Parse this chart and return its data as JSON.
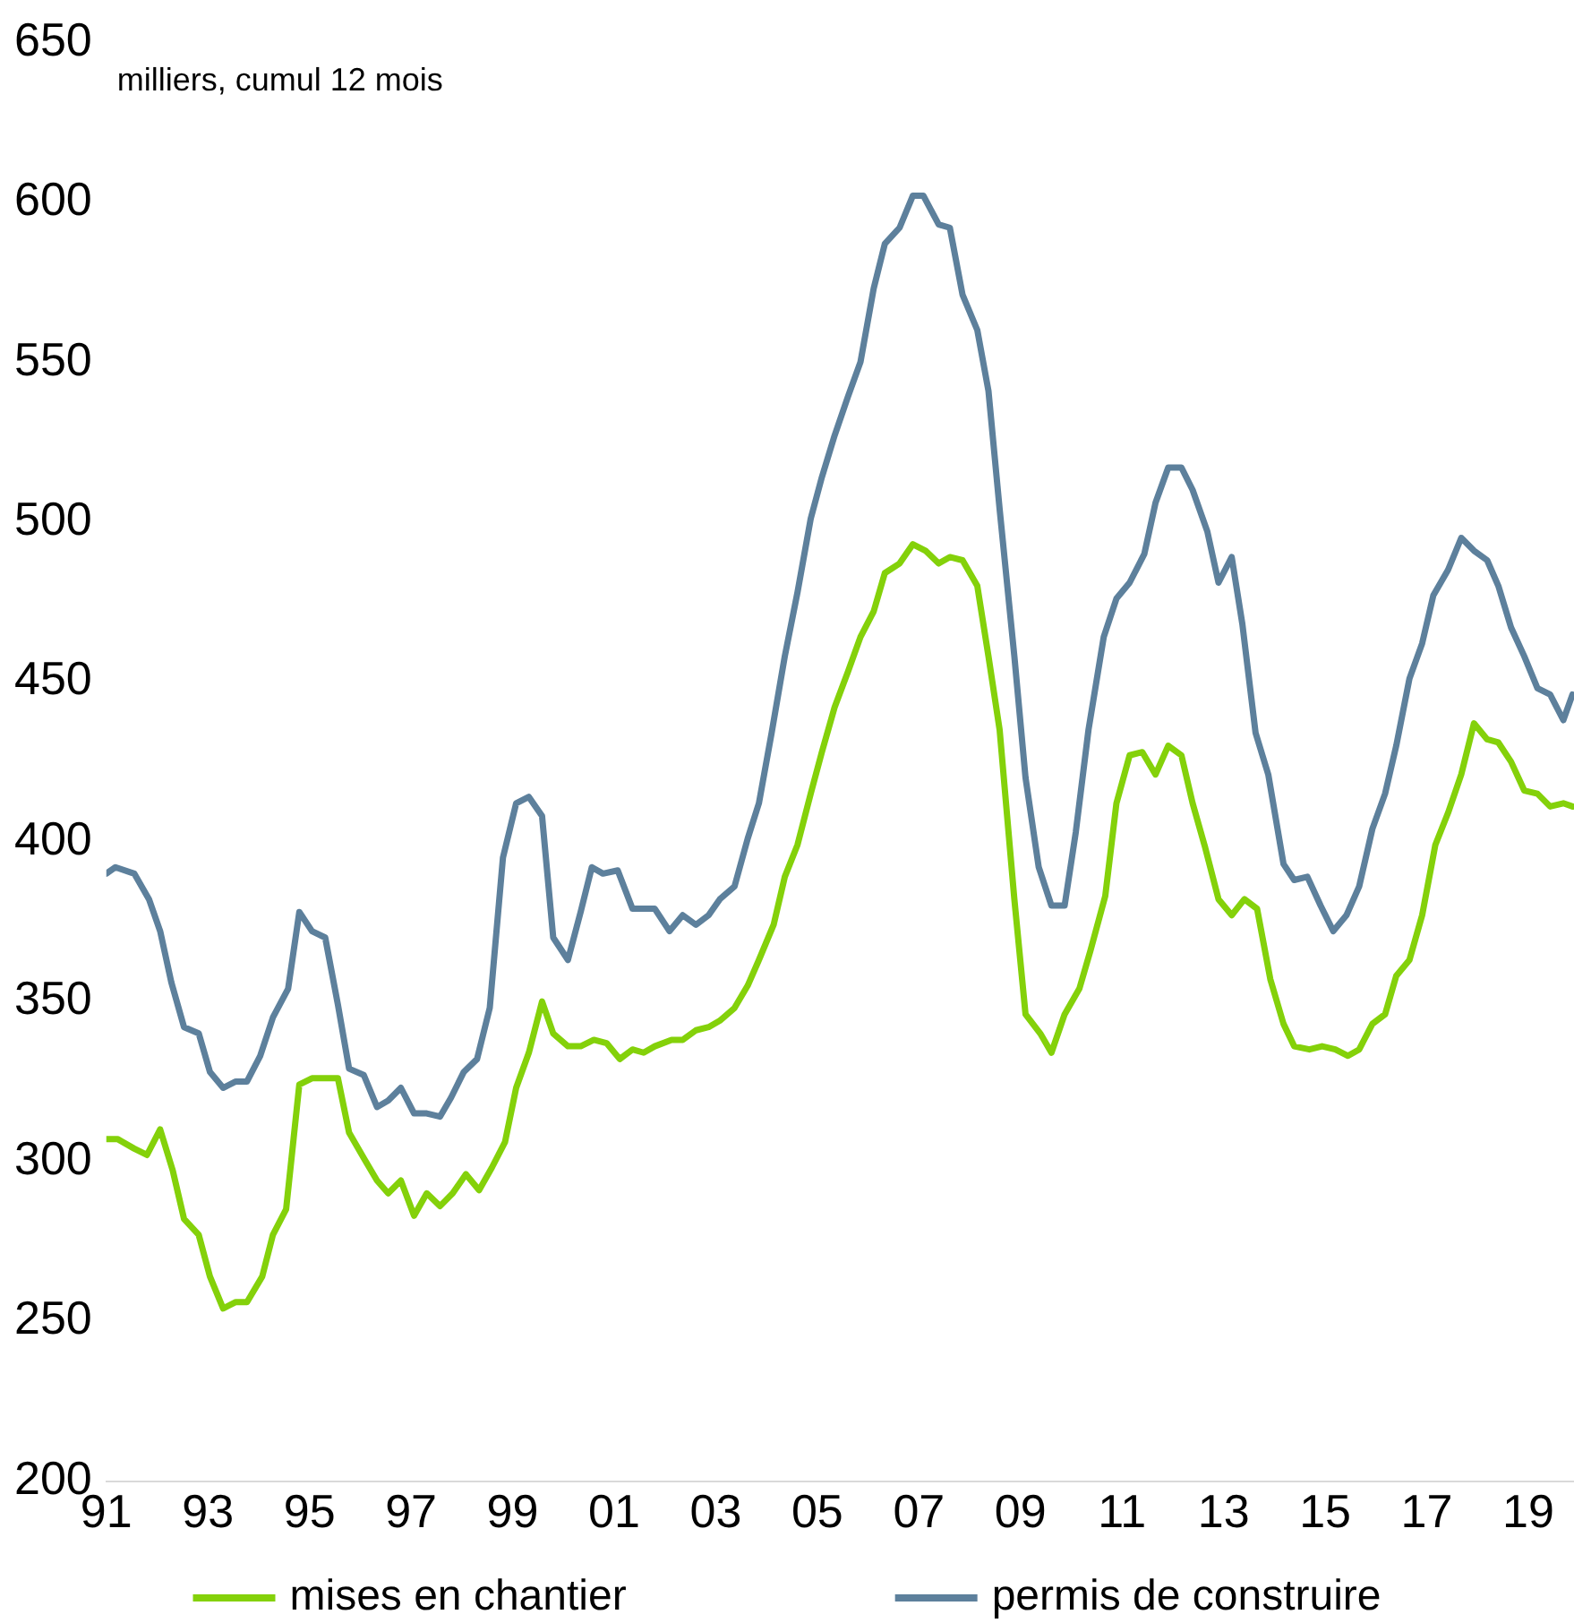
{
  "chart_data": {
    "type": "line",
    "annotations": [
      "milliers, cumul 12 mois"
    ],
    "xticks": [
      {
        "value": 1991,
        "label": "91"
      },
      {
        "value": 1993,
        "label": "93"
      },
      {
        "value": 1995,
        "label": "95"
      },
      {
        "value": 1997,
        "label": "97"
      },
      {
        "value": 1999,
        "label": "99"
      },
      {
        "value": 2001,
        "label": "01"
      },
      {
        "value": 2003,
        "label": "03"
      },
      {
        "value": 2005,
        "label": "05"
      },
      {
        "value": 2007,
        "label": "07"
      },
      {
        "value": 2009,
        "label": "09"
      },
      {
        "value": 2011,
        "label": "11"
      },
      {
        "value": 2013,
        "label": "13"
      },
      {
        "value": 2015,
        "label": "15"
      },
      {
        "value": 2017,
        "label": "17"
      },
      {
        "value": 2019,
        "label": "19"
      }
    ],
    "xlim": [
      1991,
      2019.9
    ],
    "ylim": [
      200,
      650
    ],
    "yticks": [
      200,
      250,
      300,
      350,
      400,
      450,
      500,
      550,
      600,
      650
    ],
    "grid": false,
    "legend": "bottom",
    "marker": "none",
    "line_style": "solid",
    "series": [
      {
        "name": "mises en chantier",
        "color": "#84d10a",
        "x": [
          1991.0,
          1991.22,
          1991.55,
          1991.8,
          1992.06,
          1992.31,
          1992.53,
          1992.82,
          1993.04,
          1993.3,
          1993.55,
          1993.77,
          1994.07,
          1994.28,
          1994.54,
          1994.8,
          1995.05,
          1995.31,
          1995.56,
          1995.78,
          1996.07,
          1996.33,
          1996.55,
          1996.8,
          1997.06,
          1997.31,
          1997.57,
          1997.82,
          1998.08,
          1998.34,
          1998.59,
          1998.85,
          1999.07,
          1999.32,
          1999.58,
          1999.8,
          2000.09,
          2000.34,
          2000.6,
          2000.85,
          2001.11,
          2001.36,
          2001.58,
          2001.8,
          2002.13,
          2002.35,
          2002.61,
          2002.86,
          2003.08,
          2003.37,
          2003.63,
          2003.85,
          2004.14,
          2004.36,
          2004.61,
          2004.87,
          2005.09,
          2005.34,
          2005.6,
          2005.85,
          2006.11,
          2006.33,
          2006.62,
          2006.88,
          2007.13,
          2007.39,
          2007.61,
          2007.86,
          2008.15,
          2008.37,
          2008.59,
          2008.88,
          2009.1,
          2009.39,
          2009.61,
          2009.87,
          2010.16,
          2010.38,
          2010.67,
          2010.89,
          2011.15,
          2011.4,
          2011.66,
          2011.91,
          2012.17,
          2012.39,
          2012.64,
          2012.9,
          2013.16,
          2013.41,
          2013.66,
          2013.92,
          2014.18,
          2014.39,
          2014.69,
          2014.94,
          2015.2,
          2015.45,
          2015.67,
          2015.93,
          2016.18,
          2016.4,
          2016.66,
          2016.91,
          2017.17,
          2017.42,
          2017.68,
          2017.93,
          2018.19,
          2018.41,
          2018.66,
          2018.92,
          2019.18,
          2019.43,
          2019.69,
          2019.87
        ],
        "values": [
          307,
          307,
          304,
          302,
          310,
          297,
          282,
          277,
          264,
          254,
          256,
          256,
          264,
          277,
          285,
          324,
          326,
          326,
          326,
          309,
          301,
          294,
          290,
          294,
          283,
          290,
          286,
          290,
          296,
          291,
          298,
          306,
          323,
          334,
          350,
          340,
          336,
          336,
          338,
          337,
          332,
          335,
          334,
          336,
          338,
          338,
          341,
          342,
          344,
          348,
          355,
          363,
          374,
          389,
          399,
          415,
          428,
          442,
          453,
          464,
          472,
          484,
          487,
          493,
          491,
          487,
          489,
          488,
          480,
          458,
          435,
          382,
          346,
          340,
          334,
          346,
          354,
          366,
          383,
          412,
          427,
          428,
          421,
          430,
          427,
          412,
          398,
          382,
          377,
          382,
          379,
          357,
          343,
          336,
          335,
          336,
          335,
          333,
          335,
          343,
          346,
          358,
          363,
          377,
          399,
          409,
          421,
          437,
          432,
          431,
          425,
          416,
          415,
          411,
          412,
          411
        ]
      },
      {
        "name": "permis de construire",
        "color": "#5d809c",
        "x": [
          1991.0,
          1991.18,
          1991.55,
          1991.84,
          1992.06,
          1992.28,
          1992.53,
          1992.82,
          1993.04,
          1993.3,
          1993.55,
          1993.77,
          1994.03,
          1994.28,
          1994.58,
          1994.8,
          1995.05,
          1995.31,
          1995.56,
          1995.78,
          1996.07,
          1996.33,
          1996.55,
          1996.8,
          1997.06,
          1997.31,
          1997.57,
          1997.79,
          1998.04,
          1998.3,
          1998.55,
          1998.81,
          1999.07,
          1999.32,
          1999.58,
          1999.8,
          2000.09,
          2000.34,
          2000.56,
          2000.78,
          2001.07,
          2001.36,
          2001.8,
          2002.09,
          2002.35,
          2002.61,
          2002.86,
          2003.08,
          2003.37,
          2003.63,
          2003.85,
          2004.1,
          2004.36,
          2004.61,
          2004.87,
          2005.09,
          2005.34,
          2005.6,
          2005.85,
          2006.11,
          2006.33,
          2006.62,
          2006.88,
          2007.09,
          2007.39,
          2007.61,
          2007.86,
          2008.15,
          2008.37,
          2008.59,
          2008.88,
          2009.1,
          2009.36,
          2009.61,
          2009.87,
          2010.09,
          2010.34,
          2010.64,
          2010.89,
          2011.15,
          2011.44,
          2011.66,
          2011.91,
          2012.17,
          2012.39,
          2012.68,
          2012.9,
          2013.16,
          2013.37,
          2013.63,
          2013.88,
          2014.18,
          2014.39,
          2014.65,
          2014.91,
          2015.16,
          2015.42,
          2015.67,
          2015.93,
          2016.18,
          2016.4,
          2016.66,
          2016.91,
          2017.13,
          2017.42,
          2017.68,
          2017.93,
          2018.19,
          2018.41,
          2018.66,
          2018.92,
          2019.18,
          2019.43,
          2019.69,
          2019.87
        ],
        "values": [
          390,
          392,
          390,
          382,
          372,
          356,
          342,
          340,
          328,
          323,
          325,
          325,
          333,
          345,
          354,
          378,
          372,
          370,
          349,
          329,
          327,
          317,
          319,
          323,
          315,
          315,
          314,
          320,
          328,
          332,
          348,
          395,
          412,
          414,
          408,
          370,
          363,
          378,
          392,
          390,
          391,
          379,
          379,
          372,
          377,
          374,
          377,
          382,
          386,
          401,
          412,
          434,
          458,
          478,
          501,
          514,
          527,
          539,
          550,
          573,
          587,
          592,
          602,
          602,
          593,
          592,
          571,
          560,
          541,
          504,
          458,
          420,
          392,
          380,
          380,
          403,
          435,
          464,
          476,
          481,
          490,
          506,
          517,
          517,
          510,
          497,
          481,
          489,
          468,
          434,
          421,
          393,
          388,
          389,
          380,
          372,
          377,
          386,
          404,
          415,
          430,
          451,
          462,
          477,
          485,
          495,
          491,
          488,
          480,
          467,
          458,
          448,
          446,
          438,
          446
        ]
      }
    ]
  }
}
